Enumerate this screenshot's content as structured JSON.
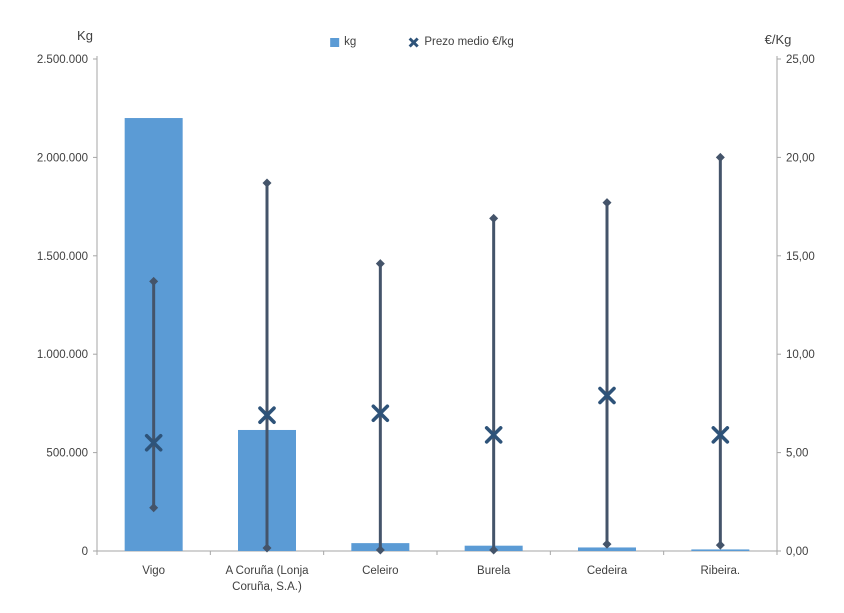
{
  "chart_data": {
    "type": "bar-line-combo",
    "title": "",
    "categories": [
      "Vigo",
      "A Coruña (Lonja Coruña, S.A.)",
      "Celeiro",
      "Burela",
      "Cedeira",
      "Ribeira."
    ],
    "category_label_lines": [
      [
        "Vigo"
      ],
      [
        "A Coruña (Lonja",
        "Coruña, S.A.)"
      ],
      [
        "Celeiro"
      ],
      [
        "Burela"
      ],
      [
        "Cedeira"
      ],
      [
        "Ribeira."
      ]
    ],
    "series": [
      {
        "name": "kg",
        "type": "bar",
        "axis": "left",
        "values": [
          2200000,
          615000,
          40000,
          27000,
          18000,
          8000
        ]
      },
      {
        "name": "Prezo medio €/kg",
        "type": "scatter-x-with-range",
        "axis": "right",
        "values": [
          5.5,
          6.9,
          7.0,
          5.9,
          7.9,
          5.9
        ],
        "range_max": [
          13.7,
          18.7,
          14.6,
          16.9,
          17.7,
          20.0
        ],
        "range_min": [
          2.2,
          0.15,
          0.05,
          0.05,
          0.35,
          0.3
        ]
      }
    ],
    "left_axis": {
      "title": "Kg",
      "min": 0,
      "max": 2500000,
      "tick_labels": [
        "0",
        "500.000",
        "1.000.000",
        "1.500.000",
        "2.000.000",
        "2.500.000"
      ]
    },
    "right_axis": {
      "title": "€/Kg",
      "min": 0,
      "max": 25,
      "tick_labels": [
        "0,00",
        "5,00",
        "10,00",
        "15,00",
        "20,00",
        "25,00"
      ]
    },
    "legend_position": "top",
    "grid": false,
    "colors": {
      "bar": "#5B9BD5",
      "range_line": "#44546A",
      "x_marker": "#2E5379",
      "axis_line": "#A6A6A6",
      "text": "#404040"
    }
  }
}
